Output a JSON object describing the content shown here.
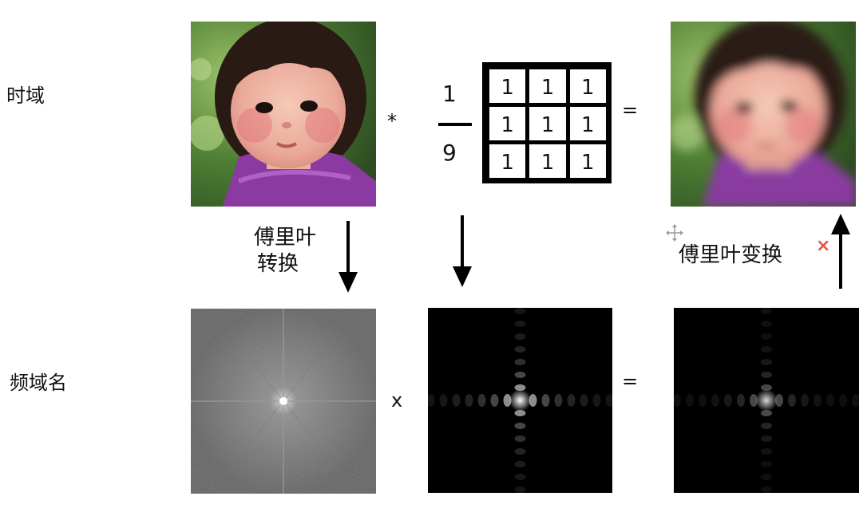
{
  "labels": {
    "time_domain": "时域",
    "freq_domain": "频域名"
  },
  "operators": {
    "convolve": "*",
    "equals_top": "=",
    "multiply": "x",
    "equals_bottom": "="
  },
  "kernel": {
    "numerator": "1",
    "denominator": "9",
    "cells": [
      [
        "1",
        "1",
        "1"
      ],
      [
        "1",
        "1",
        "1"
      ],
      [
        "1",
        "1",
        "1"
      ]
    ]
  },
  "captions": {
    "fourier_transform_line1": "傅里叶",
    "fourier_transform_line2": "转换",
    "inverse_transform": "傅里叶变换"
  },
  "icons": {
    "move": "move-icon",
    "close": "×",
    "close_color": "#e0573d"
  }
}
